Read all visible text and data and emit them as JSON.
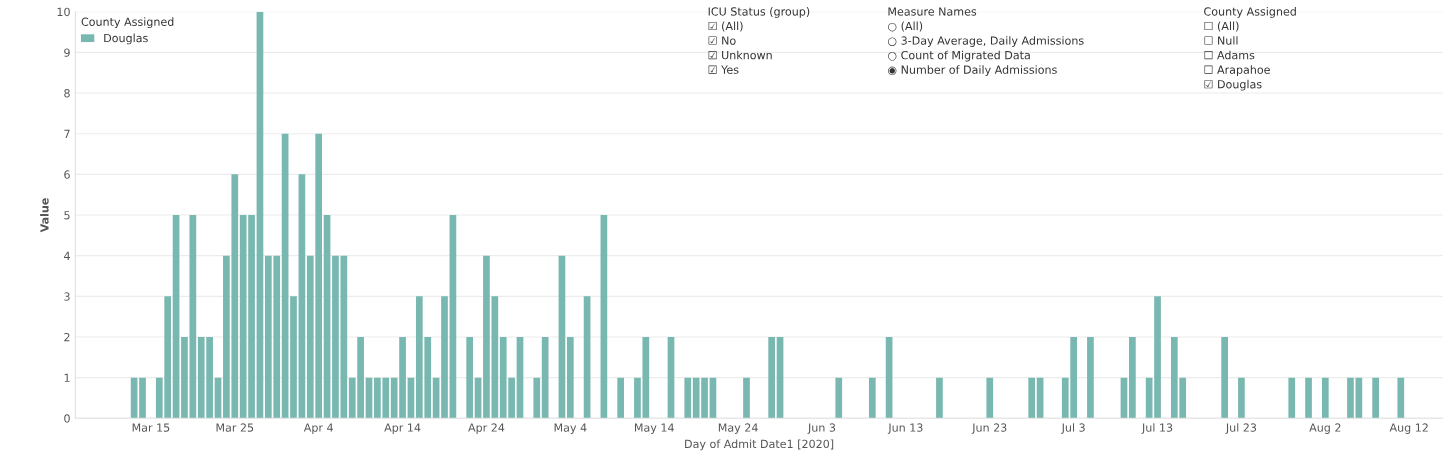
{
  "chart_data": {
    "type": "bar",
    "xlabel": "Day of Admit Date1 [2020]",
    "ylabel": "Value",
    "legend_title": "County Assigned",
    "legend": "top left",
    "grid": "y",
    "x": [
      "2020-03-13",
      "2020-03-14",
      "2020-03-16",
      "2020-03-17",
      "2020-03-18",
      "2020-03-19",
      "2020-03-20",
      "2020-03-21",
      "2020-03-22",
      "2020-03-23",
      "2020-03-24",
      "2020-03-25",
      "2020-03-26",
      "2020-03-27",
      "2020-03-28",
      "2020-03-29",
      "2020-03-30",
      "2020-03-31",
      "2020-04-01",
      "2020-04-02",
      "2020-04-03",
      "2020-04-04",
      "2020-04-05",
      "2020-04-06",
      "2020-04-07",
      "2020-04-08",
      "2020-04-09",
      "2020-04-10",
      "2020-04-11",
      "2020-04-12",
      "2020-04-13",
      "2020-04-14",
      "2020-04-15",
      "2020-04-16",
      "2020-04-17",
      "2020-04-18",
      "2020-04-19",
      "2020-04-20",
      "2020-04-22",
      "2020-04-23",
      "2020-04-24",
      "2020-04-25",
      "2020-04-26",
      "2020-04-27",
      "2020-04-28",
      "2020-04-30",
      "2020-05-01",
      "2020-05-03",
      "2020-05-04",
      "2020-05-06",
      "2020-05-08",
      "2020-05-10",
      "2020-05-12",
      "2020-05-13",
      "2020-05-16",
      "2020-05-18",
      "2020-05-19",
      "2020-05-20",
      "2020-05-21",
      "2020-05-25",
      "2020-05-28",
      "2020-05-29",
      "2020-06-05",
      "2020-06-09",
      "2020-06-11",
      "2020-06-17",
      "2020-06-23",
      "2020-06-28",
      "2020-06-29",
      "2020-07-02",
      "2020-07-03",
      "2020-07-05",
      "2020-07-09",
      "2020-07-10",
      "2020-07-12",
      "2020-07-13",
      "2020-07-15",
      "2020-07-16",
      "2020-07-21",
      "2020-07-23",
      "2020-07-29",
      "2020-07-31",
      "2020-08-02",
      "2020-08-05",
      "2020-08-06",
      "2020-08-08",
      "2020-08-11"
    ],
    "series": [
      {
        "name": "Douglas",
        "color": "#79b8b0",
        "values": [
          1,
          1,
          1,
          3,
          5,
          2,
          5,
          2,
          2,
          1,
          4,
          6,
          5,
          5,
          10,
          4,
          4,
          7,
          3,
          6,
          4,
          7,
          5,
          4,
          4,
          1,
          2,
          1,
          1,
          1,
          1,
          2,
          1,
          3,
          2,
          1,
          3,
          5,
          2,
          1,
          4,
          3,
          2,
          1,
          2,
          1,
          2,
          4,
          2,
          3,
          5,
          1,
          1,
          2,
          2,
          1,
          1,
          1,
          1,
          1,
          2,
          2,
          1,
          1,
          2,
          1,
          1,
          1,
          1,
          1,
          2,
          2,
          1,
          2,
          1,
          3,
          2,
          1,
          2,
          1,
          1,
          1,
          1,
          1,
          1,
          1,
          1
        ]
      }
    ],
    "xlim": [
      "2020-03-06",
      "2020-08-16"
    ],
    "xticks": [
      {
        "value": "2020-03-15",
        "label": "Mar 15"
      },
      {
        "value": "2020-03-25",
        "label": "Mar 25"
      },
      {
        "value": "2020-04-04",
        "label": "Apr 4"
      },
      {
        "value": "2020-04-14",
        "label": "Apr 14"
      },
      {
        "value": "2020-04-24",
        "label": "Apr 24"
      },
      {
        "value": "2020-05-04",
        "label": "May 4"
      },
      {
        "value": "2020-05-14",
        "label": "May 14"
      },
      {
        "value": "2020-05-24",
        "label": "May 24"
      },
      {
        "value": "2020-06-03",
        "label": "Jun 3"
      },
      {
        "value": "2020-06-13",
        "label": "Jun 13"
      },
      {
        "value": "2020-06-23",
        "label": "Jun 23"
      },
      {
        "value": "2020-07-03",
        "label": "Jul 3"
      },
      {
        "value": "2020-07-13",
        "label": "Jul 13"
      },
      {
        "value": "2020-07-23",
        "label": "Jul 23"
      },
      {
        "value": "2020-08-02",
        "label": "Aug 2"
      },
      {
        "value": "2020-08-12",
        "label": "Aug 12"
      }
    ],
    "ylim": [
      0,
      10
    ],
    "yticks": [
      0,
      1,
      2,
      3,
      4,
      5,
      6,
      7,
      8,
      9,
      10
    ],
    "annotations": [
      "County Assigned\n☐ (All)\n☐ Null\n☐ Adams\n☐ Arapahoe\n☑ Douglas",
      "ICU Status (group)\n☑ (All)\n☑ No\n☑ Unknown\n☑ Yes",
      "Measure Names\n○ (All)\n○ 3-Day Average, Daily Admissions\n○ Count of Migrated Data\n◉ Number of Daily Admissions"
    ]
  }
}
